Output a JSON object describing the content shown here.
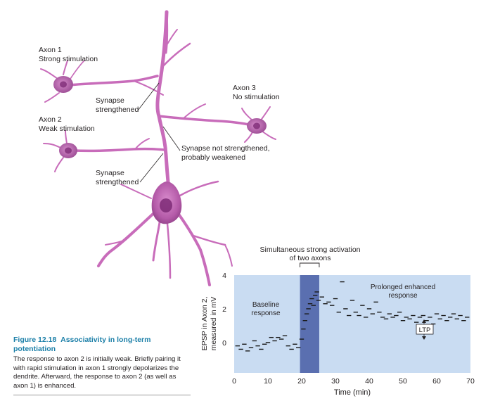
{
  "diagram": {
    "labels": {
      "axon1": [
        "Axon 1",
        "Strong stimulation"
      ],
      "axon2": [
        "Axon 2",
        "Weak stimulation"
      ],
      "axon3": [
        "Axon 3",
        "No stimulation"
      ],
      "synapse_top": [
        "Synapse",
        "strengthened"
      ],
      "synapse_bottom": [
        "Synapse",
        "strengthened"
      ],
      "synapse_weak": [
        "Synapse not strengthened,",
        "probably weakened"
      ]
    },
    "colors": {
      "neuron": "#cf74c0",
      "neuron_light": "#e4a7d9",
      "neuron_dark": "#8e3f86",
      "soma": "#b45aa8",
      "nucleus": "#7d2a76"
    }
  },
  "caption": {
    "label": "Figure 12.18",
    "title": "Associativity in long-term potentiation",
    "body": "The response to axon 2 is initially weak. Briefly pairing it with rapid stimulation in axon 1 strongly depolarizes the dendrite. Afterward, the response to axon 2 (as well as axon 1) is enhanced."
  },
  "chart_data": {
    "type": "scatter",
    "xlabel": "Time (min)",
    "ylabel": "EPSP in Axon 2, measured in mV",
    "ylabel_lines": [
      "EPSP in Axon 2,",
      "measured in mV"
    ],
    "xlim": [
      0,
      70
    ],
    "ylim": [
      -1.8,
      4
    ],
    "xticks": [
      0,
      10,
      20,
      30,
      40,
      50,
      60,
      70
    ],
    "yticks": [
      0,
      2,
      4
    ],
    "grid": false,
    "band": {
      "x": [
        19.5,
        25.2
      ],
      "label_lines": [
        "Simultaneous strong activation",
        "of two axons"
      ]
    },
    "annotations": {
      "baseline": [
        "Baseline",
        "response"
      ],
      "enhanced": [
        "Prolonged enhanced",
        "response"
      ],
      "ltp": "LTP"
    },
    "colors": {
      "plot_bg": "#c9dcf2",
      "band": "#5a6fb0",
      "marker": "#1a1a1a"
    },
    "series": [
      {
        "x": [
          1,
          2,
          3,
          4,
          5,
          6,
          7,
          8,
          9,
          10,
          11,
          12,
          13,
          14,
          15,
          16,
          17,
          18,
          19,
          20,
          20.5,
          21,
          21.5,
          22,
          22.5,
          23,
          23.5,
          24,
          24.5,
          25,
          26,
          27,
          28,
          29,
          30,
          31,
          32,
          33,
          34,
          35,
          36,
          37,
          38,
          39,
          40,
          41,
          42,
          43,
          44,
          45,
          46,
          47,
          48,
          49,
          50,
          51,
          52,
          53,
          54,
          55,
          56,
          57,
          58,
          59,
          60,
          61,
          62,
          63,
          64,
          65,
          66,
          67,
          68,
          69
        ],
        "y": [
          -0.2,
          -0.4,
          -0.1,
          -0.5,
          -0.3,
          0.1,
          -0.2,
          -0.4,
          -0.1,
          0.0,
          0.3,
          0.1,
          0.3,
          0.2,
          0.4,
          -0.2,
          -0.4,
          -0.1,
          -0.3,
          0.2,
          0.8,
          1.3,
          1.7,
          2.0,
          2.3,
          2.6,
          2.2,
          2.8,
          3.0,
          2.5,
          2.7,
          2.3,
          2.4,
          2.2,
          2.6,
          1.8,
          3.6,
          2.0,
          1.6,
          2.5,
          1.8,
          1.6,
          2.2,
          1.5,
          2.0,
          1.7,
          2.4,
          1.8,
          1.5,
          1.4,
          1.7,
          1.5,
          1.6,
          1.8,
          1.3,
          1.5,
          1.4,
          1.6,
          1.2,
          1.5,
          1.6,
          1.3,
          1.5,
          1.1,
          1.7,
          1.4,
          1.6,
          1.3,
          1.5,
          1.7,
          1.4,
          1.6,
          1.3,
          1.5
        ]
      }
    ]
  }
}
